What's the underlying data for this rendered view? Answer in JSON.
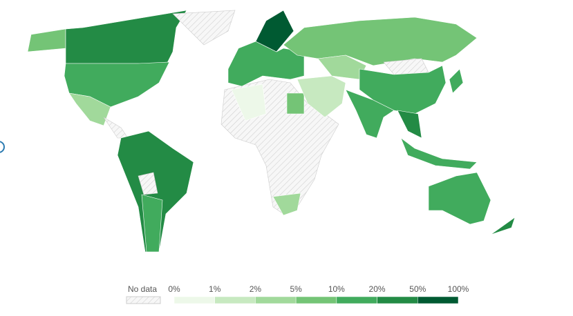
{
  "legend": {
    "no_data": "No data",
    "ticks": [
      "0%",
      "1%",
      "2%",
      "5%",
      "10%",
      "20%",
      "50%",
      "100%"
    ],
    "colors": [
      "#edf8e9",
      "#c7e9c0",
      "#a1d99b",
      "#74c476",
      "#41ab5d",
      "#238b45",
      "#005a32"
    ]
  }
}
